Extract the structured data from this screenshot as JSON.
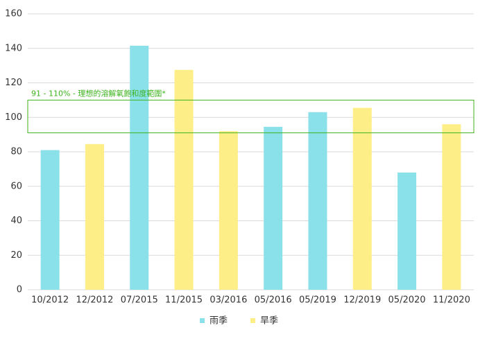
{
  "chart_data": {
    "type": "bar",
    "categories": [
      "10/2012",
      "12/2012",
      "07/2015",
      "11/2015",
      "03/2016",
      "05/2016",
      "05/2019",
      "12/2019",
      "05/2020",
      "11/2020"
    ],
    "series": [
      {
        "name": "雨季",
        "color": "#8ae1ea",
        "values": [
          81,
          null,
          141.5,
          null,
          null,
          94.5,
          103,
          null,
          68,
          null
        ]
      },
      {
        "name": "旱季",
        "color": "#fdee88",
        "values": [
          null,
          84.5,
          null,
          127.5,
          92,
          null,
          null,
          105.5,
          null,
          96
        ]
      }
    ],
    "ylim": [
      0,
      160
    ],
    "yticks": [
      0,
      20,
      40,
      60,
      80,
      100,
      120,
      140,
      160
    ],
    "grid": true,
    "band": {
      "label": "91 - 110% - 理想的溶解氧飽和度範圍*",
      "range": [
        91,
        110
      ],
      "color": "#3cb31c"
    },
    "legend": "bottom"
  }
}
